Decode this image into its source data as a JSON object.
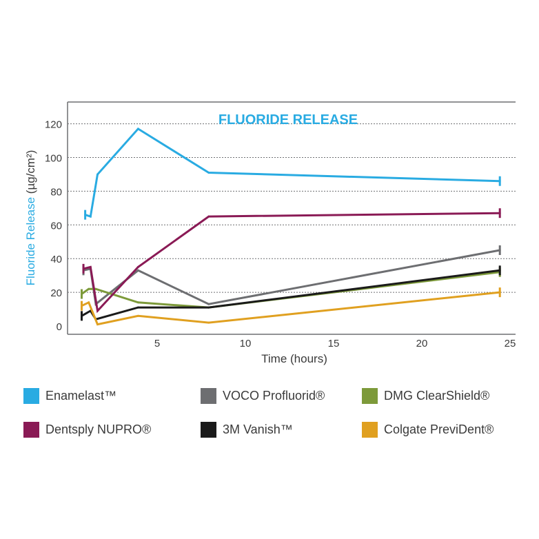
{
  "chart_data": {
    "type": "line",
    "title": "FLUORIDE RELEASE",
    "xlabel": "Time (hours)",
    "ylabel": "Fluoride Release (µg/cm²)",
    "xlim": [
      0,
      25.5
    ],
    "ylim": [
      -5,
      140
    ],
    "x_ticks": [
      5,
      10,
      15,
      20,
      25
    ],
    "y_ticks": [
      0,
      20,
      40,
      60,
      80,
      100,
      120
    ],
    "grid": "horizontal-dashed",
    "legend_position": "bottom",
    "series": [
      {
        "name": "Enamelast™",
        "color": "#29abe2",
        "x": [
          1,
          1.3,
          1.7,
          4,
          8,
          24.5
        ],
        "y": [
          66,
          65,
          90,
          117,
          91,
          86
        ]
      },
      {
        "name": "VOCO Profluorid®",
        "color": "#6d6e71",
        "x": [
          0.9,
          1.3,
          1.6,
          4,
          8,
          24.5
        ],
        "y": [
          33,
          34,
          13,
          33,
          13,
          45
        ]
      },
      {
        "name": "DMG ClearShield®",
        "color": "#7d9a3a",
        "x": [
          0.8,
          1.2,
          1.6,
          4,
          8,
          24.5
        ],
        "y": [
          19,
          22,
          22,
          14,
          11,
          32
        ]
      },
      {
        "name": "Dentsply NUPRO®",
        "color": "#8a1a55",
        "x": [
          0.9,
          1.3,
          1.7,
          4,
          8,
          24.5
        ],
        "y": [
          34,
          35,
          9,
          35,
          65,
          67
        ]
      },
      {
        "name": "3M Vanish™",
        "color": "#1a1a1a",
        "x": [
          0.8,
          1.3,
          1.6,
          4,
          8,
          24.5
        ],
        "y": [
          6,
          9,
          4,
          11,
          11,
          33
        ]
      },
      {
        "name": "Colgate PreviDent®",
        "color": "#e0a020",
        "x": [
          0.8,
          1.2,
          1.7,
          4,
          8,
          24.5
        ],
        "y": [
          12,
          14,
          1,
          6,
          2,
          20
        ]
      }
    ]
  }
}
